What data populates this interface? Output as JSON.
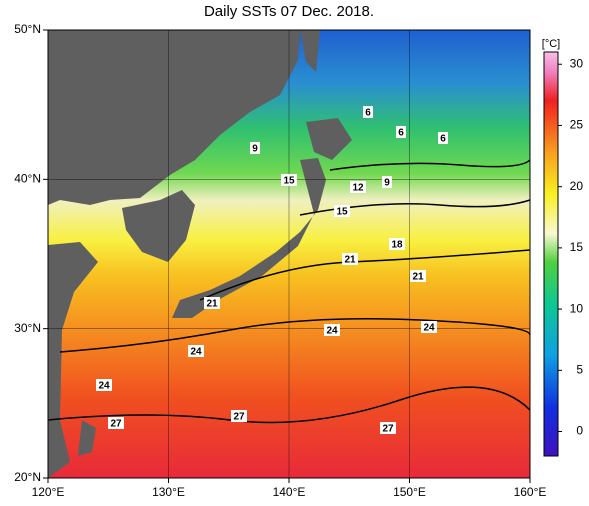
{
  "title": "Daily SSTs 07 Dec. 2018.",
  "map": {
    "xlim": [
      120,
      160
    ],
    "ylim": [
      20,
      50
    ],
    "xticks": [
      {
        "value": 120,
        "label": "120°E"
      },
      {
        "value": 130,
        "label": "130°E"
      },
      {
        "value": 140,
        "label": "140°E"
      },
      {
        "value": 150,
        "label": "150°E"
      },
      {
        "value": 160,
        "label": "160°E"
      }
    ],
    "yticks": [
      {
        "value": 20,
        "label": "20°N"
      },
      {
        "value": 30,
        "label": "30°N"
      },
      {
        "value": 40,
        "label": "40°N"
      },
      {
        "value": 50,
        "label": "50°N"
      }
    ],
    "contour_labels": [
      "6",
      "6",
      "6",
      "9",
      "9",
      "12",
      "15",
      "15",
      "18",
      "21",
      "21",
      "21",
      "24",
      "24",
      "24",
      "24",
      "27",
      "27",
      "27"
    ]
  },
  "colorbar": {
    "unit": "[°C]",
    "lim": [
      -2,
      31
    ],
    "ticks": [
      0,
      5,
      10,
      15,
      20,
      25,
      30
    ]
  }
}
